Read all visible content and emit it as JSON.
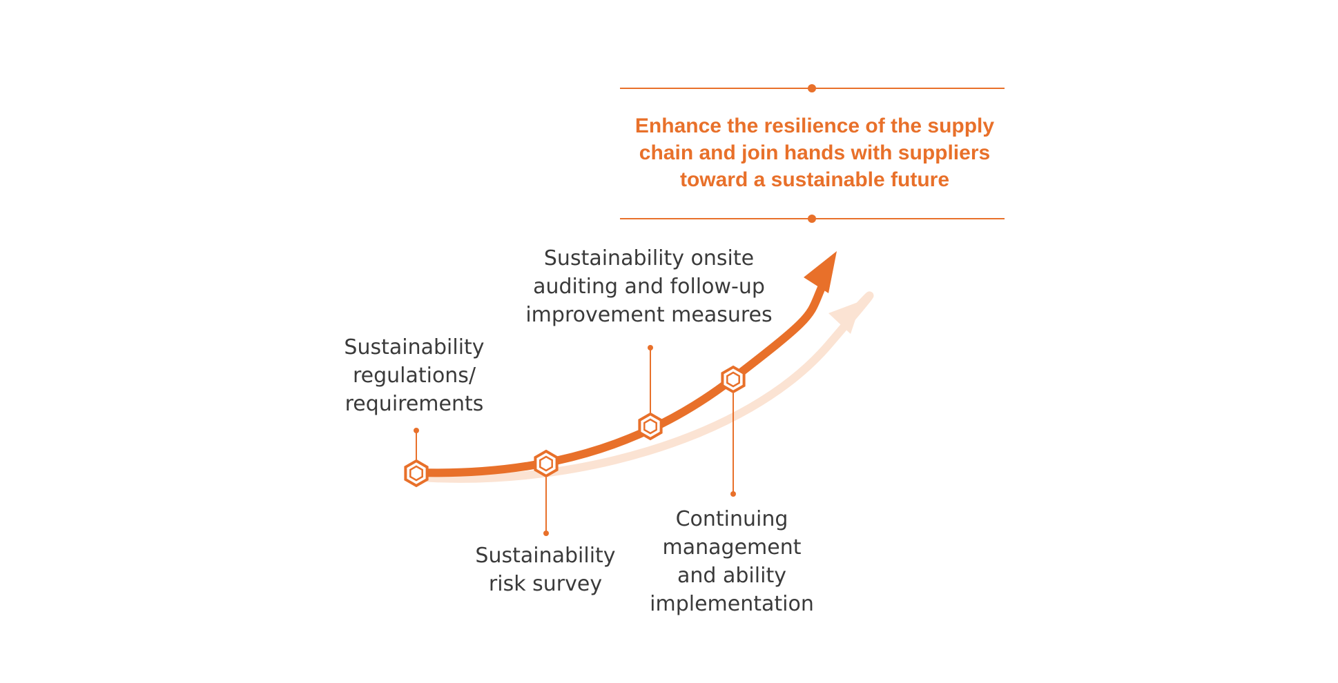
{
  "colors": {
    "accent": "#e8702a",
    "accent_light": "#fbe3d3",
    "text": "#3a3a3a"
  },
  "goal": {
    "lines": [
      "Enhance the resilience of the supply",
      "chain and join hands with suppliers",
      "toward a sustainable future"
    ]
  },
  "steps": [
    {
      "lines": [
        "Sustainability",
        "regulations/",
        "requirements"
      ]
    },
    {
      "lines": [
        "Sustainability",
        "risk survey"
      ]
    },
    {
      "lines": [
        "Sustainability onsite",
        "auditing and follow-up",
        "improvement measures"
      ]
    },
    {
      "lines": [
        "Continuing",
        "management",
        "and ability",
        "implementation"
      ]
    }
  ]
}
